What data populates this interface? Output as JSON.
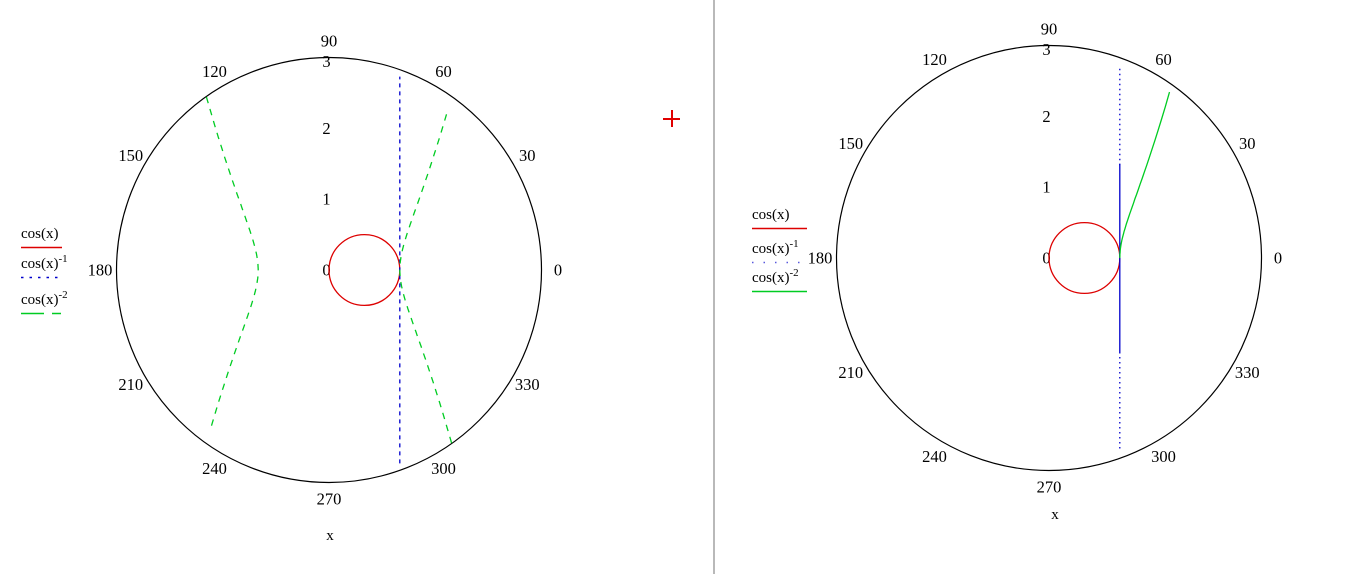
{
  "worksheet": {
    "divider_color": "#b9b9b9",
    "cursor_color": "#e00000",
    "background": "#ffffff"
  },
  "chart_data": [
    {
      "type": "polar",
      "id": "left",
      "angle_ticks_deg": [
        90,
        60,
        30,
        0,
        330,
        300,
        270,
        240,
        210,
        180,
        150,
        120
      ],
      "angle_tick_labels": [
        "90",
        "60",
        "30",
        "0",
        "330",
        "300",
        "270",
        "240",
        "210",
        "180",
        "150",
        "120"
      ],
      "radial_ticks": [
        0,
        1,
        2,
        3
      ],
      "radial_tick_labels": [
        "0",
        "1",
        "2",
        "3"
      ],
      "r_range": [
        0,
        3
      ],
      "axis_label": "x",
      "outline_color": "#000000",
      "legend": [
        {
          "base": "cos(x)",
          "sup": "",
          "color": "#dd0000",
          "style": "solid",
          "sample_dash": ""
        },
        {
          "base": "cos(x)",
          "sup": "-1",
          "color": "#0000cc",
          "style": "dotted",
          "sample_dash": "2.5 6"
        },
        {
          "base": "cos(x)",
          "sup": "-2",
          "color": "#00cc22",
          "style": "dashed",
          "sample_dash": "23 8 9 100"
        }
      ],
      "series": [
        {
          "name": "cos(x)",
          "fn": "cos",
          "color": "#dd0000",
          "dash": "",
          "desc": "r=cos(t): unit-diameter circle through origin on the 0-deg axis"
        },
        {
          "name": "cos(x)^-1",
          "fn": "sec",
          "color": "#0000cc",
          "desc": "r=sec(t): vertical line at x=1, dashed",
          "segments": [
            {
              "tan_range": [
                -2.73,
                2.73
              ],
              "dash": "4 4"
            }
          ]
        },
        {
          "name": "cos(x)^-2",
          "fn": "sec2",
          "color": "#00cc22",
          "dash": "6.5 6",
          "desc": "r=sec(t)^2: two branches clipped at r=3, dashed",
          "branches_deg": [
            [
              -54.7,
              54.7
            ],
            [
              125.3,
              234.7
            ]
          ]
        }
      ]
    },
    {
      "type": "polar",
      "id": "right",
      "angle_ticks_deg": [
        90,
        60,
        30,
        0,
        330,
        300,
        270,
        240,
        210,
        180,
        150,
        120
      ],
      "angle_tick_labels": [
        "90",
        "60",
        "30",
        "0",
        "330",
        "300",
        "270",
        "240",
        "210",
        "180",
        "150",
        "120"
      ],
      "radial_ticks": [
        0,
        1,
        2,
        3
      ],
      "radial_tick_labels": [
        "0",
        "1",
        "2",
        "3"
      ],
      "r_range": [
        0,
        3
      ],
      "axis_label": "x",
      "outline_color": "#000000",
      "legend": [
        {
          "base": "cos(x)",
          "sup": "",
          "color": "#dd0000",
          "style": "solid",
          "sample_dash": ""
        },
        {
          "base": "cos(x)",
          "sup": "-1",
          "color": "#0000cc",
          "style": "dotted",
          "sample_dash": "1.5 10",
          "sample_opacity": 0.65
        },
        {
          "base": "cos(x)",
          "sup": "-2",
          "color": "#00cc22",
          "style": "solid",
          "sample_dash": ""
        }
      ],
      "series": [
        {
          "name": "cos(x)",
          "fn": "cos",
          "color": "#dd0000",
          "dash": "",
          "desc": "r=cos(t): unit-diameter circle through origin on the 0-deg axis"
        },
        {
          "name": "cos(x)^-1",
          "fn": "sec",
          "color": "#0000cc",
          "desc": "r=sec(t): vertical line at x=1, dotted at ends and solid in the middle",
          "segments": [
            {
              "tan_range": [
                -2.69,
                -1.31
              ],
              "dash": "1.5 3.5"
            },
            {
              "tan_range": [
                -1.33,
                1.33
              ],
              "dash": ""
            },
            {
              "tan_range": [
                1.31,
                2.69
              ],
              "dash": "1.5 3.5"
            }
          ]
        },
        {
          "name": "cos(x)^-2",
          "fn": "sec2",
          "color": "#00cc22",
          "dash": "",
          "desc": "r=sec(t)^2: upper-right branch only, solid, from (1,0) to r=3 at ~54.7 deg",
          "branches_deg": [
            [
              0,
              54.7
            ]
          ]
        }
      ]
    }
  ]
}
